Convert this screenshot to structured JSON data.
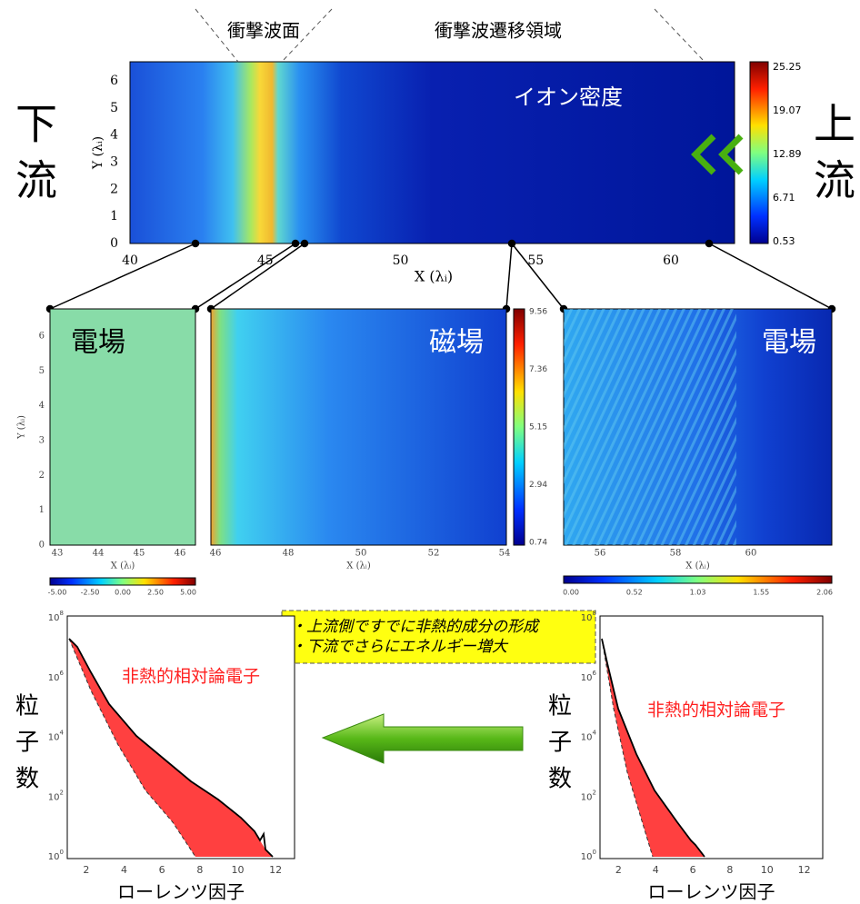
{
  "top": {
    "shock_front": "衝撃波面",
    "transition_region": "衝撃波遷移領域",
    "quantity": "イオン密度",
    "downstream": [
      "下",
      "流"
    ],
    "upstream": [
      "上",
      "流"
    ],
    "xticks": [
      "40",
      "45",
      "50",
      "55",
      "60"
    ],
    "yticks": [
      "0",
      "1",
      "2",
      "3",
      "4",
      "5",
      "6"
    ],
    "xlabel": "X (λᵢ)",
    "ylabel": "Y (λᵢ)",
    "colorbar": [
      "25.25",
      "19.07",
      "12.89",
      "6.71",
      "0.53"
    ]
  },
  "panels": [
    {
      "label": "電場",
      "xticks": [
        "43",
        "44",
        "45",
        "46"
      ],
      "yticks": [
        "0",
        "1",
        "2",
        "3",
        "4",
        "5",
        "6"
      ],
      "xlabel": "X (λᵢ)",
      "ylabel": "Y (λᵢ)",
      "colorbar": [
        "-5.00",
        "-2.50",
        "0.00",
        "2.50",
        "5.00"
      ]
    },
    {
      "label": "磁場",
      "xticks": [
        "46",
        "48",
        "50",
        "52",
        "54"
      ],
      "xlabel": "X (λᵢ)",
      "colorbar": [
        "9.56",
        "7.36",
        "5.15",
        "2.94",
        "0.74"
      ]
    },
    {
      "label": "電場",
      "xticks": [
        "56",
        "58",
        "60"
      ],
      "xlabel": "X (λᵢ)",
      "colorbar": [
        "0.00",
        "0.52",
        "1.03",
        "1.55",
        "2.06"
      ]
    }
  ],
  "note": [
    "・上流側ですでに非熱的成分の形成",
    "・下流でさらにエネルギー増大"
  ],
  "spectra": [
    {
      "ylabel": [
        "粒",
        "子",
        "数"
      ],
      "annotation": "非熱的相対論電子",
      "xlabel": "ローレンツ因子",
      "xticks": [
        "2",
        "4",
        "6",
        "8",
        "10",
        "12"
      ],
      "yticks": [
        {
          "base": "10",
          "exp": "0"
        },
        {
          "base": "10",
          "exp": "2"
        },
        {
          "base": "10",
          "exp": "4"
        },
        {
          "base": "10",
          "exp": "6"
        },
        {
          "base": "10",
          "exp": "8"
        }
      ]
    },
    {
      "ylabel": [
        "粒",
        "子",
        "数"
      ],
      "annotation": "非熱的相対論電子",
      "xlabel": "ローレンツ因子",
      "xticks": [
        "2",
        "4",
        "6",
        "8",
        "10",
        "12"
      ],
      "yticks": [
        {
          "base": "10",
          "exp": "0"
        },
        {
          "base": "10",
          "exp": "2"
        },
        {
          "base": "10",
          "exp": "4"
        },
        {
          "base": "10",
          "exp": "6"
        },
        {
          "base": "10",
          "exp": "8"
        }
      ]
    }
  ]
}
